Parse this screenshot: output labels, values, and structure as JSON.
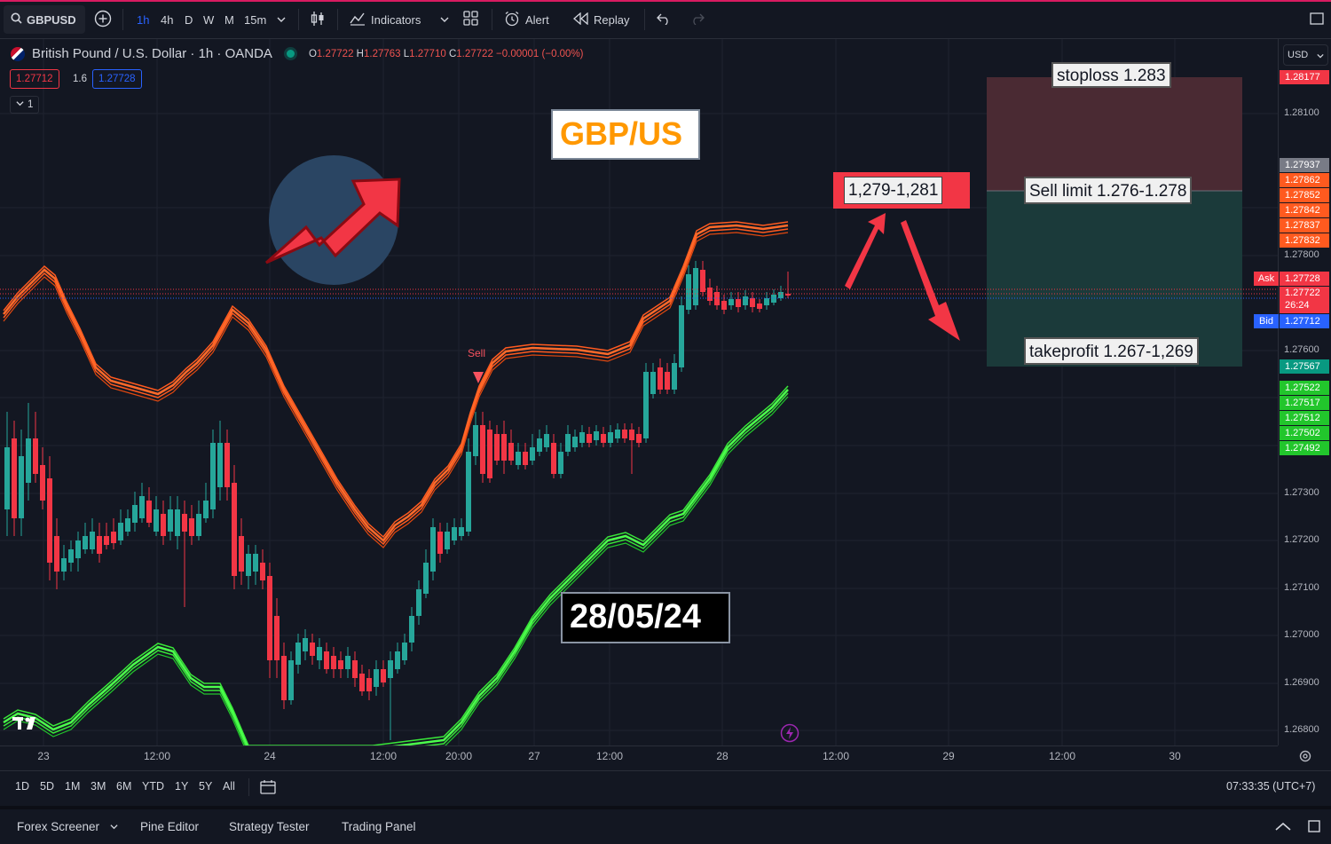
{
  "toolbar": {
    "symbol": "GBPUSD",
    "timeframes": [
      "1h",
      "4h",
      "D",
      "W",
      "M",
      "15m"
    ],
    "active_timeframe": "1h",
    "indicators_label": "Indicators",
    "alert_label": "Alert",
    "replay_label": "Replay"
  },
  "legend": {
    "title": "British Pound / U.S. Dollar · 1h · OANDA",
    "o_label": "O",
    "o_value": "1.27722",
    "h_label": "H",
    "h_value": "1.27763",
    "l_label": "L",
    "l_value": "1.27710",
    "c_label": "C",
    "c_value": "1.27722",
    "change": "−0.00001 (−0.00%)",
    "sell_price": "1.27712",
    "spread": "1.6",
    "buy_price": "1.27728",
    "collapse_count": "1"
  },
  "currency": "USD",
  "price_scale": {
    "labels": [
      "1.28100",
      "1.27800",
      "1.27600",
      "1.27300",
      "1.27200",
      "1.27100",
      "1.27000",
      "1.26900",
      "1.26800"
    ],
    "stoploss_tag": "1.28177",
    "gray_tag": "1.27937",
    "orange_tags": [
      "1.27862",
      "1.27852",
      "1.27842",
      "1.27837",
      "1.27832"
    ],
    "ask_label": "Ask",
    "ask_price": "1.27728",
    "last_price": "1.27722",
    "countdown": "26:24",
    "bid_label": "Bid",
    "bid_price": "1.27712",
    "takeprofit_tag": "1.27567",
    "green_tags": [
      "1.27522",
      "1.27517",
      "1.27512",
      "1.27502",
      "1.27492"
    ]
  },
  "time_axis": [
    "23",
    "12:00",
    "24",
    "12:00",
    "20:00",
    "27",
    "12:00",
    "28",
    "12:00",
    "29",
    "12:00",
    "30"
  ],
  "ranges": [
    "1D",
    "5D",
    "1M",
    "3M",
    "6M",
    "YTD",
    "1Y",
    "5Y",
    "All"
  ],
  "clock": "07:33:35 (UTC+7)",
  "bottom_tabs": [
    "Forex Screener",
    "Pine Editor",
    "Strategy Tester",
    "Trading Panel"
  ],
  "annotations": {
    "pair_title": "GBP/US",
    "date": "28/05/24",
    "zone": "1,279-1,281",
    "stoploss": "stoploss 1.283",
    "sell_limit": "Sell limit 1.276-1.278",
    "takeprofit": "takeprofit 1.267-1,269",
    "sell_marker": "Sell"
  },
  "colors": {
    "background": "#131722",
    "up_candle": "#26a69a",
    "down_candle": "#f23645",
    "upper_band": "#ff5a1f",
    "lower_band": "#39e639",
    "accent": "#2962ff",
    "orange_text": "#ff9800"
  },
  "chart_data": {
    "type": "line",
    "series": [],
    "ylim": [
      1.2676,
      1.2822
    ]
  }
}
